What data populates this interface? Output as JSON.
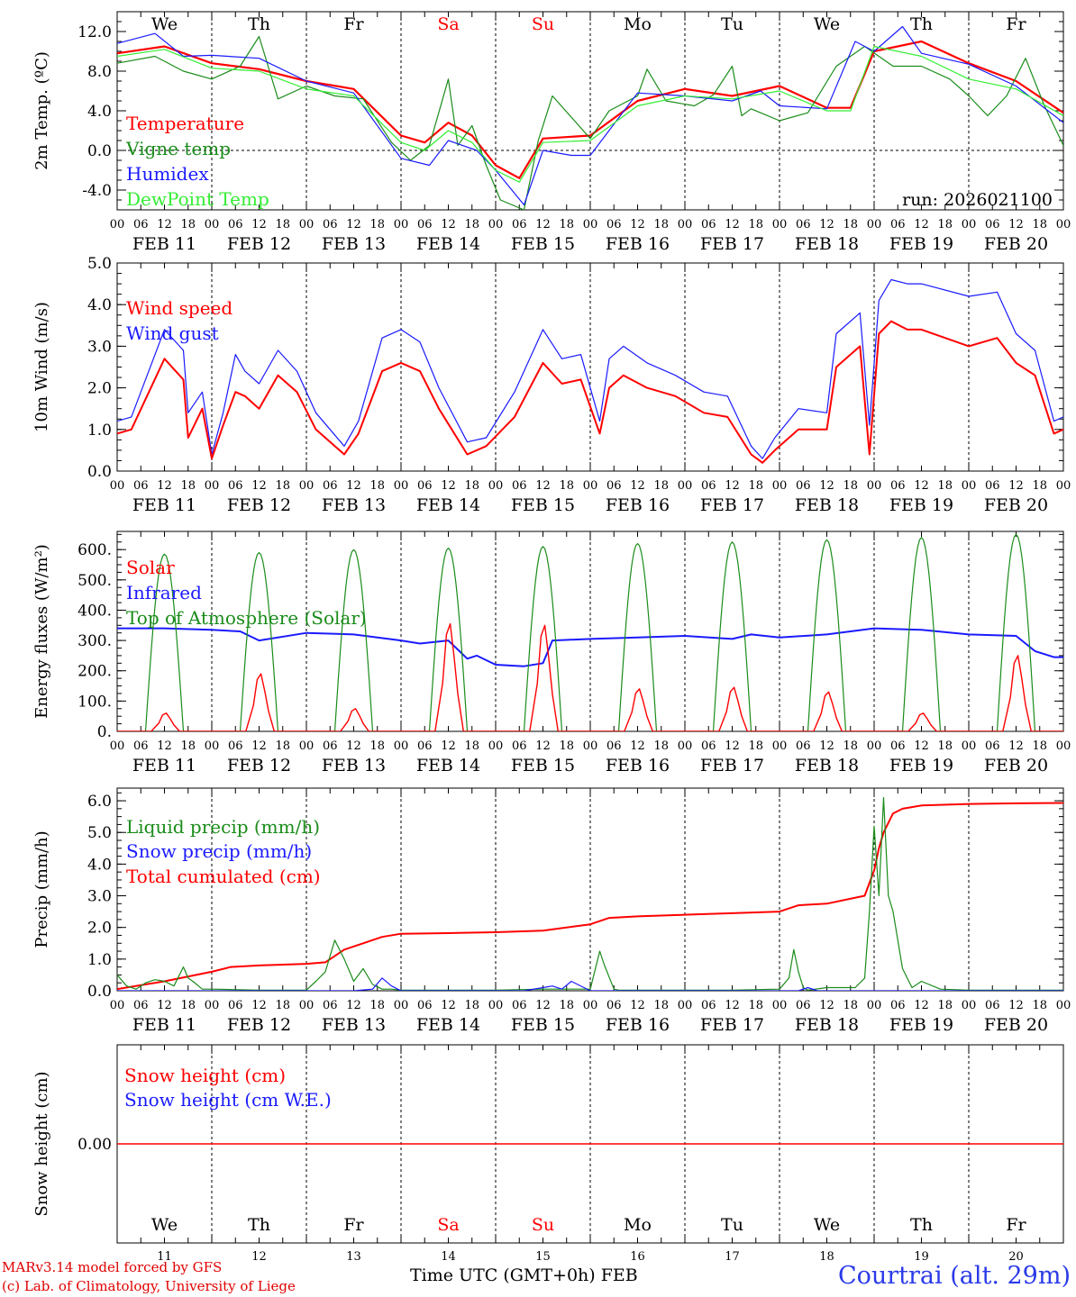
{
  "colors": {
    "red": "#ff0000",
    "blue": "#1a1aff",
    "darkgreen": "#1a8c1a",
    "lightgreen": "#33ee33",
    "black": "#000000"
  },
  "weekdays": [
    {
      "label": "We",
      "weekend": false
    },
    {
      "label": "Th",
      "weekend": false
    },
    {
      "label": "Fr",
      "weekend": false
    },
    {
      "label": "Sa",
      "weekend": true
    },
    {
      "label": "Su",
      "weekend": true
    },
    {
      "label": "Mo",
      "weekend": false
    },
    {
      "label": "Tu",
      "weekend": false
    },
    {
      "label": "We",
      "weekend": false
    },
    {
      "label": "Th",
      "weekend": false
    },
    {
      "label": "Fr",
      "weekend": false
    }
  ],
  "hour_ticks": [
    "00",
    "06",
    "12",
    "18"
  ],
  "hour_end": "00",
  "date_labels": [
    "FEB 11",
    "FEB 12",
    "FEB 13",
    "FEB 14",
    "FEB 15",
    "FEB 16",
    "FEB 17",
    "FEB 18",
    "FEB 19",
    "FEB 20"
  ],
  "day_numbers": [
    "11",
    "12",
    "13",
    "14",
    "15",
    "16",
    "17",
    "18",
    "19",
    "20"
  ],
  "footer": {
    "credit_line1": "MARv3.14 model forced by GFS",
    "credit_line2": "(c) Lab. of Climatology, University of Liege",
    "xlabel": "Time UTC (GMT+0h)",
    "month": "FEB",
    "station": "Courtrai (alt. 29m)"
  },
  "chart_data": [
    {
      "id": "temp",
      "type": "line",
      "ylabel": "2m Temp. (ºC)",
      "ylim": [
        -6,
        14
      ],
      "yticks": [
        -4,
        0,
        4,
        8,
        12
      ],
      "tick_labels": [
        "-4.0",
        "0.0",
        "4.0",
        "8.0",
        "12.0"
      ],
      "zero_line": true,
      "annotation": "run: 2026021100",
      "xlim_days": [
        0,
        10
      ],
      "series": [
        {
          "name": "Temperature",
          "color": "red",
          "width": 2.2,
          "x": [
            0,
            0.5,
            1,
            1.5,
            2,
            2.5,
            3,
            3.25,
            3.5,
            3.75,
            4,
            4.25,
            4.5,
            5,
            5.5,
            6,
            6.5,
            7,
            7.5,
            7.75,
            8,
            8.5,
            9,
            9.5,
            10
          ],
          "y": [
            9.8,
            10.5,
            8.8,
            8.2,
            7,
            6.2,
            1.5,
            0.8,
            2.8,
            1.5,
            -1.5,
            -2.8,
            1.2,
            1.5,
            5,
            6.2,
            5.5,
            6.5,
            4.3,
            4.3,
            10,
            11,
            8.8,
            7,
            3.8
          ]
        },
        {
          "name": "Vigne temp",
          "color": "darkgreen",
          "width": 1.2,
          "x": [
            0,
            0.4,
            0.7,
            1,
            1.3,
            1.5,
            1.7,
            2,
            2.3,
            2.6,
            2.9,
            3.1,
            3.3,
            3.5,
            3.6,
            3.75,
            3.9,
            4.05,
            4.3,
            4.45,
            4.6,
            5,
            5.2,
            5.5,
            5.6,
            5.8,
            6.1,
            6.3,
            6.5,
            6.6,
            6.7,
            7,
            7.3,
            7.6,
            7.9,
            8.2,
            8.5,
            8.8,
            9,
            9.2,
            9.4,
            9.6,
            9.8,
            10
          ],
          "y": [
            8.8,
            9.5,
            8,
            7.2,
            8.5,
            11.5,
            5.2,
            6.5,
            5.5,
            5.2,
            0.8,
            -1,
            0.5,
            7.2,
            0.5,
            2.5,
            -1.5,
            -5,
            -6,
            1,
            5.5,
            1.2,
            4,
            5.5,
            8.2,
            5,
            4.5,
            5.6,
            8.5,
            3.5,
            4.2,
            3,
            3.8,
            8.5,
            10.5,
            8.5,
            8.5,
            7.2,
            5.5,
            3.5,
            5.5,
            9.3,
            4.5,
            0.5
          ]
        },
        {
          "name": "Humidex",
          "color": "blue",
          "width": 1.2,
          "x": [
            0,
            0.4,
            0.7,
            1,
            1.5,
            2,
            2.5,
            3,
            3.3,
            3.5,
            3.8,
            4,
            4.3,
            4.5,
            4.8,
            5,
            5.5,
            6,
            6.5,
            6.8,
            7,
            7.5,
            7.8,
            8,
            8.3,
            8.5,
            9,
            9.5,
            10
          ],
          "y": [
            10.8,
            11.8,
            9.5,
            9.6,
            9.3,
            7,
            5.8,
            -0.8,
            -1.5,
            1,
            0,
            -2,
            -5.5,
            0,
            -0.5,
            -0.5,
            5.8,
            5.5,
            5,
            6,
            4.5,
            4.2,
            11,
            10,
            12.5,
            9.8,
            8.7,
            6.5,
            2.8
          ]
        },
        {
          "name": "DewPoint Temp",
          "color": "lightgreen",
          "width": 1.2,
          "x": [
            0,
            0.5,
            1,
            1.5,
            2,
            2.5,
            3,
            3.25,
            3.5,
            3.75,
            4,
            4.25,
            4.5,
            5,
            5.5,
            6,
            6.5,
            7,
            7.5,
            7.75,
            8,
            8.5,
            9,
            9.5,
            10
          ],
          "y": [
            9.5,
            10.2,
            8.3,
            8,
            6.2,
            5.5,
            0.8,
            0,
            2,
            0.8,
            -2,
            -3.2,
            0.8,
            1,
            4.5,
            5.5,
            5.2,
            6,
            4,
            4,
            10.5,
            9.5,
            7.2,
            6.2,
            3.5
          ]
        }
      ],
      "legend": [
        {
          "label": "Temperature",
          "color": "red"
        },
        {
          "label": "Vigne temp",
          "color": "darkgreen"
        },
        {
          "label": "Humidex",
          "color": "blue"
        },
        {
          "label": "DewPoint Temp",
          "color": "lightgreen"
        }
      ]
    },
    {
      "id": "wind",
      "type": "line",
      "ylabel": "10m Wind (m/s)",
      "ylim": [
        0,
        5
      ],
      "yticks": [
        0,
        1,
        2,
        3,
        4,
        5
      ],
      "tick_labels": [
        "0.0",
        "1.0",
        "2.0",
        "3.0",
        "4.0",
        "5.0"
      ],
      "xlim_days": [
        0,
        10
      ],
      "series": [
        {
          "name": "Wind gust",
          "color": "blue",
          "width": 1.2,
          "x": [
            0,
            0.15,
            0.5,
            0.7,
            0.75,
            0.9,
            1,
            1.12,
            1.25,
            1.35,
            1.5,
            1.7,
            1.9,
            2.1,
            2.4,
            2.55,
            2.8,
            3,
            3.2,
            3.4,
            3.7,
            3.9,
            4.2,
            4.5,
            4.7,
            4.9,
            5.1,
            5.2,
            5.35,
            5.6,
            5.9,
            6.2,
            6.45,
            6.7,
            6.82,
            6.95,
            7.2,
            7.5,
            7.6,
            7.85,
            7.95,
            8.05,
            8.18,
            8.35,
            8.5,
            9,
            9.3,
            9.5,
            9.7,
            9.9,
            10
          ],
          "y": [
            1.2,
            1.3,
            3.4,
            2.9,
            1.4,
            1.9,
            0.4,
            1.4,
            2.8,
            2.4,
            2.1,
            2.9,
            2.4,
            1.4,
            0.6,
            1.2,
            3.2,
            3.4,
            3.1,
            2.0,
            0.7,
            0.8,
            1.9,
            3.4,
            2.7,
            2.8,
            1.2,
            2.7,
            3.0,
            2.6,
            2.3,
            1.9,
            1.8,
            0.6,
            0.3,
            0.8,
            1.5,
            1.4,
            3.3,
            3.8,
            1.1,
            4.1,
            4.6,
            4.5,
            4.5,
            4.2,
            4.3,
            3.3,
            2.9,
            1.2,
            1.3
          ]
        },
        {
          "name": "Wind speed",
          "color": "red",
          "width": 2,
          "x": [
            0,
            0.15,
            0.5,
            0.7,
            0.75,
            0.9,
            1,
            1.12,
            1.25,
            1.35,
            1.5,
            1.7,
            1.9,
            2.1,
            2.4,
            2.55,
            2.8,
            3,
            3.2,
            3.4,
            3.7,
            3.9,
            4.2,
            4.5,
            4.7,
            4.9,
            5.1,
            5.2,
            5.35,
            5.6,
            5.9,
            6.2,
            6.45,
            6.7,
            6.82,
            6.95,
            7.2,
            7.5,
            7.6,
            7.85,
            7.95,
            8.05,
            8.18,
            8.35,
            8.5,
            9,
            9.3,
            9.5,
            9.7,
            9.9,
            10
          ],
          "y": [
            0.9,
            1.0,
            2.7,
            2.2,
            0.8,
            1.5,
            0.3,
            1.1,
            1.9,
            1.8,
            1.5,
            2.3,
            1.9,
            1.0,
            0.4,
            0.9,
            2.4,
            2.6,
            2.4,
            1.5,
            0.4,
            0.6,
            1.3,
            2.6,
            2.1,
            2.2,
            0.9,
            2.0,
            2.3,
            2.0,
            1.8,
            1.4,
            1.3,
            0.4,
            0.2,
            0.5,
            1.0,
            1.0,
            2.5,
            3.0,
            0.4,
            3.3,
            3.6,
            3.4,
            3.4,
            3.0,
            3.2,
            2.6,
            2.3,
            0.9,
            1.0
          ]
        }
      ],
      "legend": [
        {
          "label": "Wind speed",
          "color": "red"
        },
        {
          "label": "Wind gust",
          "color": "blue"
        }
      ]
    },
    {
      "id": "energy",
      "type": "line",
      "ylabel": "Energy fluxes (W/m²)",
      "ylim": [
        0,
        660
      ],
      "yticks": [
        0,
        100,
        200,
        300,
        400,
        500,
        600
      ],
      "tick_labels": [
        "0.",
        "100.",
        "200.",
        "300.",
        "400.",
        "500.",
        "600."
      ],
      "xlim_days": [
        0,
        10
      ],
      "toa_peaks": [
        585,
        590,
        600,
        605,
        610,
        620,
        625,
        632,
        640,
        650
      ],
      "solar_peaks": [
        60,
        190,
        75,
        355,
        350,
        140,
        145,
        130,
        60,
        250
      ],
      "series": [
        {
          "name": "Infrared",
          "color": "blue",
          "width": 2,
          "x": [
            0,
            0.5,
            1,
            1.3,
            1.5,
            2,
            2.5,
            3,
            3.2,
            3.5,
            3.7,
            3.8,
            4,
            4.3,
            4.5,
            4.6,
            5,
            5.5,
            6,
            6.5,
            6.7,
            7,
            7.5,
            8,
            8.5,
            9,
            9.5,
            9.7,
            9.9,
            10
          ],
          "y": [
            340,
            340,
            335,
            330,
            300,
            325,
            320,
            300,
            290,
            300,
            240,
            250,
            220,
            215,
            225,
            300,
            305,
            310,
            315,
            305,
            320,
            310,
            320,
            340,
            335,
            320,
            315,
            265,
            245,
            245
          ]
        },
        {
          "name": "Top of Atmosphere (Solar)",
          "color": "darkgreen",
          "width": 1.2,
          "kind": "toa"
        },
        {
          "name": "Solar",
          "color": "red",
          "width": 1.4,
          "kind": "solar"
        }
      ],
      "legend": [
        {
          "label": "Solar",
          "color": "red"
        },
        {
          "label": "Infrared",
          "color": "blue"
        },
        {
          "label": "Top of Atmosphere (Solar)",
          "color": "darkgreen"
        }
      ]
    },
    {
      "id": "precip",
      "type": "line",
      "ylabel": "Precip (mm/h)",
      "ylim": [
        0,
        6.4
      ],
      "yticks": [
        0,
        1,
        2,
        3,
        4,
        5,
        6
      ],
      "tick_labels": [
        "0.0",
        "1.0",
        "2.0",
        "3.0",
        "4.0",
        "5.0",
        "6.0"
      ],
      "xlim_days": [
        0,
        10
      ],
      "series": [
        {
          "name": "Total cumulated (cm)",
          "color": "red",
          "width": 2,
          "x": [
            0,
            0.5,
            1,
            1.2,
            1.5,
            2,
            2.2,
            2.4,
            2.6,
            2.8,
            3,
            3.5,
            4,
            4.5,
            5,
            5.2,
            5.5,
            6,
            6.5,
            7,
            7.2,
            7.5,
            7.9,
            8,
            8.05,
            8.1,
            8.2,
            8.3,
            8.5,
            9,
            9.5,
            10
          ],
          "y": [
            0.05,
            0.3,
            0.6,
            0.75,
            0.8,
            0.85,
            0.9,
            1.3,
            1.5,
            1.7,
            1.8,
            1.82,
            1.85,
            1.9,
            2.1,
            2.3,
            2.35,
            2.4,
            2.45,
            2.5,
            2.7,
            2.75,
            3.0,
            3.8,
            4.5,
            5.0,
            5.6,
            5.75,
            5.85,
            5.9,
            5.92,
            5.93
          ]
        },
        {
          "name": "Liquid precip (mm/h)",
          "color": "darkgreen",
          "width": 1.2,
          "x": [
            0,
            0.1,
            0.2,
            0.3,
            0.4,
            0.5,
            0.6,
            0.7,
            0.75,
            0.8,
            0.9,
            1,
            1.5,
            2,
            2.1,
            2.2,
            2.3,
            2.4,
            2.5,
            2.6,
            2.7,
            2.8,
            2.9,
            3.0,
            3.5,
            4,
            4.5,
            5,
            5.1,
            5.15,
            5.25,
            5.3,
            5.5,
            6,
            6.5,
            7,
            7.1,
            7.15,
            7.2,
            7.25,
            7.3,
            7.5,
            7.8,
            7.9,
            7.95,
            8.0,
            8.05,
            8.1,
            8.15,
            8.2,
            8.3,
            8.4,
            8.5,
            8.7,
            9,
            10
          ],
          "y": [
            0.5,
            0.15,
            0.05,
            0.25,
            0.35,
            0.3,
            0.15,
            0.75,
            0.4,
            0.3,
            0.05,
            0.05,
            0.02,
            0.02,
            0.3,
            0.6,
            1.6,
            1.0,
            0.3,
            0.7,
            0.2,
            0.05,
            0.05,
            0.02,
            0.02,
            0.02,
            0.05,
            0.05,
            1.25,
            0.8,
            0.05,
            0.02,
            0.02,
            0.02,
            0.02,
            0.05,
            0.4,
            1.3,
            0.6,
            0.1,
            0.02,
            0.1,
            0.1,
            0.4,
            2.5,
            5.2,
            3.0,
            6.1,
            3.0,
            2.5,
            0.7,
            0.1,
            0.3,
            0.05,
            0.02,
            0.02
          ]
        },
        {
          "name": "Snow precip (mm/h)",
          "color": "blue",
          "width": 1.2,
          "x": [
            0,
            2.5,
            2.7,
            2.8,
            2.9,
            3.0,
            4.3,
            4.5,
            4.6,
            4.7,
            4.8,
            5.0,
            7.2,
            7.3,
            7.4,
            10
          ],
          "y": [
            0,
            0,
            0.05,
            0.4,
            0.15,
            0,
            0,
            0.1,
            0.15,
            0.05,
            0.3,
            0,
            0,
            0.1,
            0,
            0
          ]
        }
      ],
      "legend": [
        {
          "label": "Liquid precip (mm/h)",
          "color": "darkgreen"
        },
        {
          "label": "Snow precip (mm/h)",
          "color": "blue"
        },
        {
          "label": "Total cumulated (cm)",
          "color": "red"
        }
      ]
    },
    {
      "id": "snow",
      "type": "line",
      "ylabel": "Snow height (cm)",
      "ylim": [
        -1,
        1
      ],
      "yticks": [
        0
      ],
      "tick_labels": [
        "0.00"
      ],
      "xlim_days": [
        0,
        10
      ],
      "series": [
        {
          "name": "Snow height (cm)",
          "color": "red",
          "width": 1.4,
          "x": [
            0,
            10
          ],
          "y": [
            0,
            0
          ]
        }
      ],
      "legend": [
        {
          "label": "Snow height (cm)",
          "color": "red"
        },
        {
          "label": "Snow height (cm W.E.)",
          "color": "blue"
        }
      ]
    }
  ]
}
